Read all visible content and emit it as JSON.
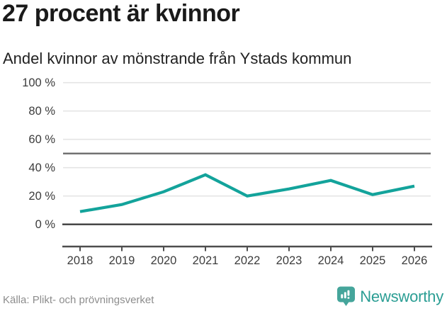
{
  "header": {
    "title": "27 procent är kvinnor",
    "subtitle": "Andel kvinnor av mönstrande från Ystads kommun"
  },
  "chart_data": {
    "type": "line",
    "x": [
      2018,
      2019,
      2020,
      2021,
      2022,
      2023,
      2024,
      2025,
      2026
    ],
    "series": [
      {
        "name": "Andel kvinnor av mönstrande",
        "values": [
          9,
          14,
          23,
          35,
          20,
          25,
          31,
          21,
          27
        ]
      }
    ],
    "title": "27 procent är kvinnor",
    "subtitle": "Andel kvinnor av mönstrande från Ystads kommun",
    "xlabel": "",
    "ylabel": "",
    "ylim": [
      0,
      100
    ],
    "yticks": [
      0,
      20,
      40,
      60,
      80,
      100
    ],
    "ytick_suffix": " %",
    "reference_line_y": 50,
    "grid": true,
    "legend": false,
    "line_color": "#13a39b",
    "grid_color": "#e4e4e4",
    "reference_line_color": "#6b6b6b",
    "zero_line_color": "#3d3d3d",
    "axis_color": "#4d4d4d",
    "tick_label_color": "#3c3c3c"
  },
  "footer": {
    "source": "Källa: Plikt- och prövningsverket",
    "brand_name": "Newsworthy",
    "brand_color": "#2b9e94",
    "brand_icon_color": "#45a59b",
    "brand_icon": "newsworthy-bar-chart-bubble-icon"
  }
}
